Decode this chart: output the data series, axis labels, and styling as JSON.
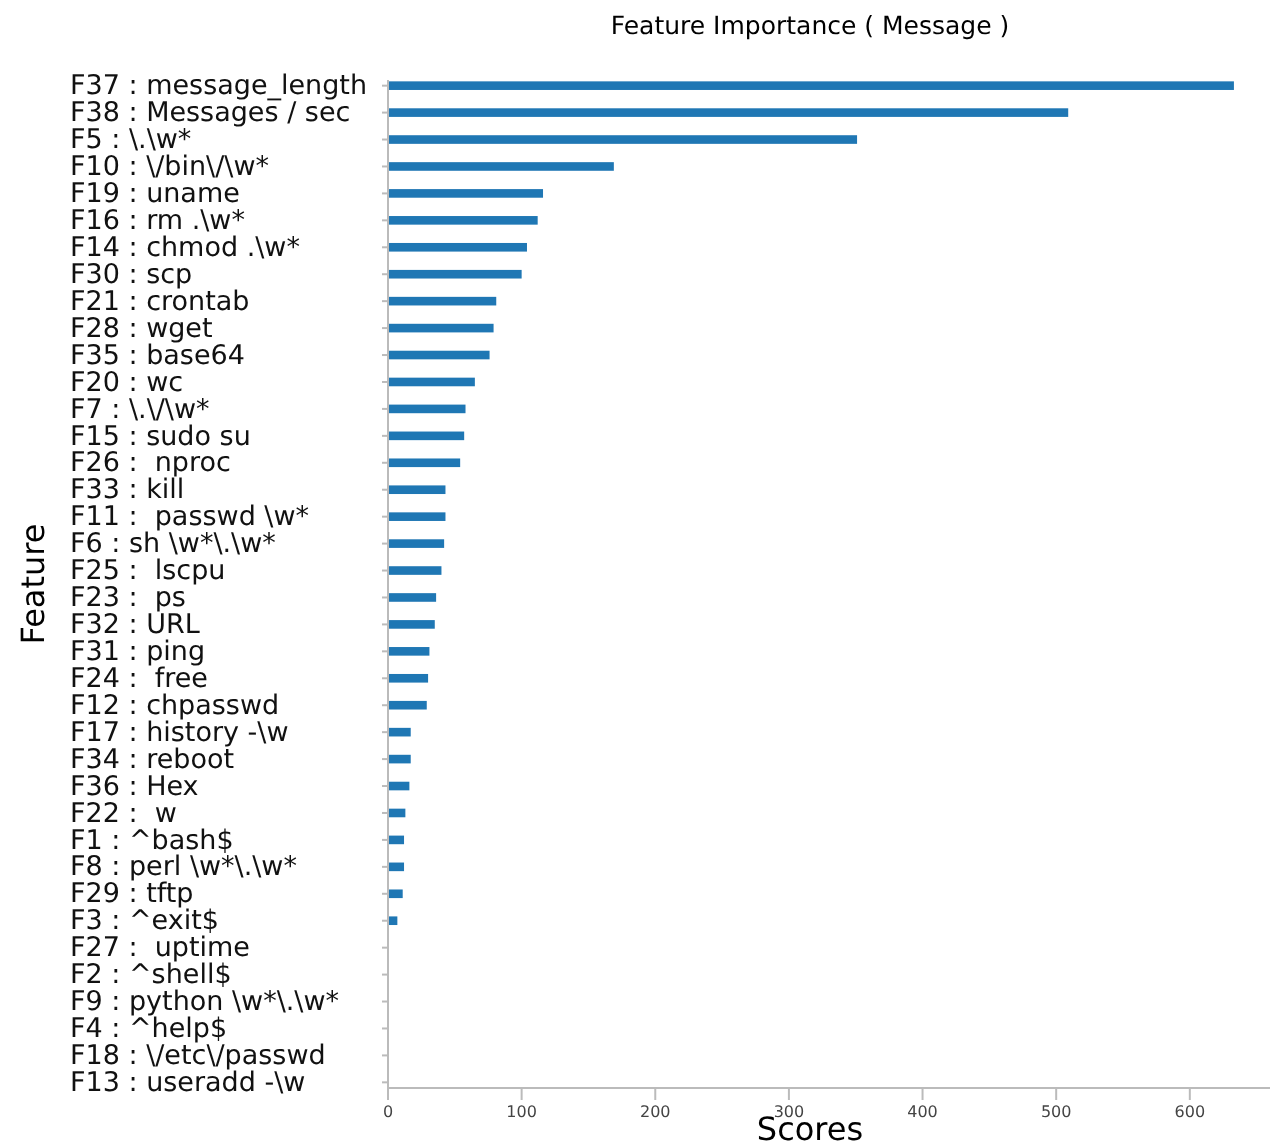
{
  "chart_data": {
    "type": "bar",
    "orientation": "horizontal",
    "title": "Feature Importance ( Message )",
    "xlabel": "Scores",
    "ylabel": "Feature",
    "categories": [
      "F37 : message_length",
      "F38 : Messages / sec",
      "F5 : \\.\\w*",
      "F10 : \\/bin\\/\\w*",
      "F19 : uname",
      "F16 : rm .\\w*",
      "F14 : chmod .\\w*",
      "F30 : scp",
      "F21 : crontab",
      "F28 : wget",
      "F35 : base64",
      "F20 : wc",
      "F7 : \\.\\/\\w*",
      "F15 : sudo su",
      "F26 :  nproc",
      "F33 : kill",
      "F11 :  passwd \\w*",
      "F6 : sh \\w*\\.\\w*",
      "F25 :  lscpu",
      "F23 :  ps",
      "F32 : URL",
      "F31 : ping",
      "F24 :  free",
      "F12 : chpasswd",
      "F17 : history -\\w",
      "F34 : reboot",
      "F36 : Hex",
      "F22 :  w",
      "F1 : ^bash$",
      "F8 : perl \\w*\\.\\w*",
      "F29 : tftp",
      "F3 : ^exit$",
      "F27 :  uptime",
      "F2 : ^shell$",
      "F9 : python \\w*\\.\\w*",
      "F4 : ^help$",
      "F18 : \\/etc\\/passwd",
      "F13 : useradd -\\w"
    ],
    "values": [
      633,
      509,
      351,
      169,
      116,
      112,
      104,
      100,
      81,
      79,
      76,
      65,
      58,
      57,
      54,
      43,
      43,
      42,
      40,
      36,
      35,
      31,
      30,
      29,
      17,
      17,
      16,
      13,
      12,
      12,
      11,
      7,
      0,
      0,
      0,
      0,
      0,
      0
    ],
    "color": "#1f77b4",
    "xlim": [
      0,
      660
    ],
    "xticks": [
      0,
      100,
      200,
      300,
      400,
      500,
      600
    ],
    "grid": false
  }
}
